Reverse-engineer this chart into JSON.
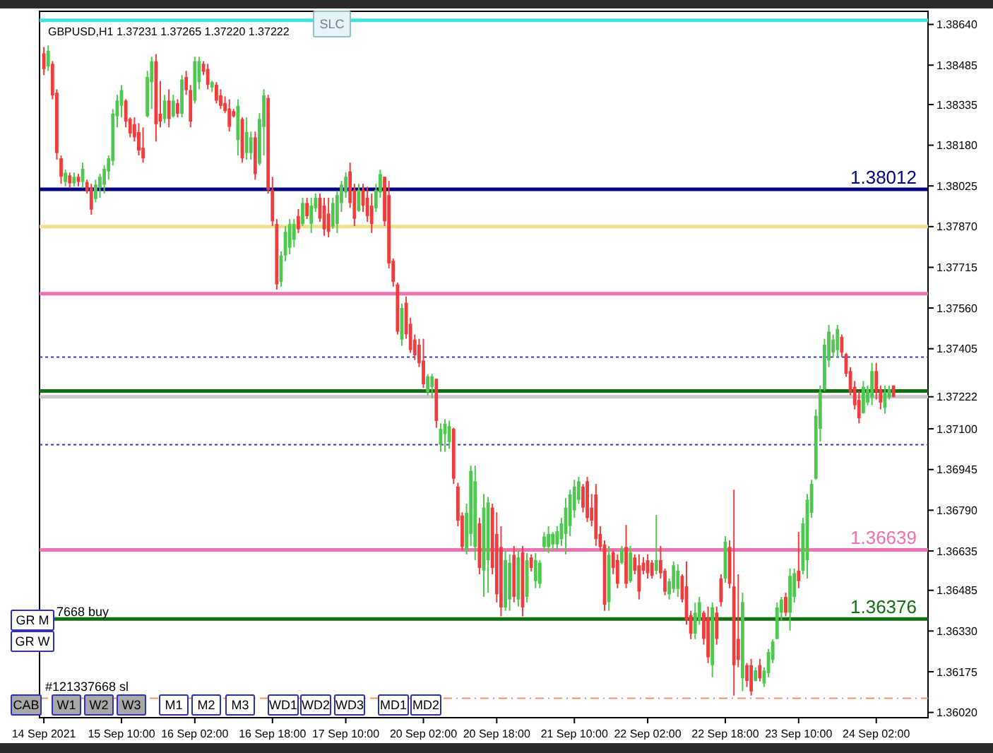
{
  "chart_data": {
    "type": "candlestick",
    "title": "GBPUSD,H1  1.37231 1.37265 1.37220 1.37222",
    "categories": [
      "14 Sep 2021",
      null,
      null,
      null,
      null,
      null,
      null,
      null,
      null,
      null,
      null,
      null,
      null,
      null,
      null,
      null,
      null,
      null,
      "15 Sep 10:00",
      null,
      null,
      null,
      null,
      null,
      null,
      null,
      null,
      null,
      null,
      null,
      null,
      null,
      null,
      null,
      null,
      "16 Sep 02:00",
      null,
      null,
      null,
      null,
      null,
      null,
      null,
      null,
      null,
      null,
      null,
      null,
      null,
      null,
      null,
      null,
      null,
      "16 Sep 18:00",
      null,
      null,
      null,
      null,
      null,
      null,
      null,
      null,
      null,
      null,
      null,
      null,
      null,
      null,
      null,
      null,
      "17 Sep 10:00",
      null,
      null,
      null,
      null,
      null,
      null,
      null,
      null,
      null,
      null,
      null,
      null,
      null,
      null,
      null,
      null,
      null,
      "20 Sep 02:00",
      null,
      null,
      null,
      null,
      null,
      null,
      null,
      null,
      null,
      null,
      null,
      null,
      null,
      null,
      null,
      null,
      "20 Sep 18:00",
      null,
      null,
      null,
      null,
      null,
      null,
      null,
      null,
      null,
      null,
      null,
      null,
      null,
      null,
      null,
      null,
      null,
      "21 Sep 10:00",
      null,
      null,
      null,
      null,
      null,
      null,
      null,
      null,
      null,
      null,
      null,
      null,
      null,
      null,
      null,
      null,
      "22 Sep 02:00",
      null,
      null,
      null,
      null,
      null,
      null,
      null,
      null,
      null,
      null,
      null,
      null,
      null,
      null,
      null,
      null,
      null,
      "22 Sep 18:00",
      null,
      null,
      null,
      null,
      null,
      null,
      null,
      null,
      null,
      null,
      null,
      null,
      null,
      null,
      null,
      null,
      "23 Sep 10:00",
      null,
      null,
      null,
      null,
      null,
      null,
      null,
      null,
      null,
      null,
      null,
      null,
      null,
      null,
      null,
      null,
      null,
      "24 Sep 02:00",
      null,
      null,
      null,
      null
    ],
    "ohlc": [
      [
        1.3853,
        1.38554,
        1.38447,
        1.3847
      ],
      [
        1.3848,
        1.3856,
        1.38463,
        1.3854
      ],
      [
        1.3849,
        1.385,
        1.38355,
        1.3837
      ],
      [
        1.3838,
        1.38393,
        1.38125,
        1.3815
      ],
      [
        1.3813,
        1.38141,
        1.38033,
        1.3806
      ],
      [
        1.3804,
        1.38087,
        1.38023,
        1.38075
      ],
      [
        1.38065,
        1.38076,
        1.38017,
        1.38035
      ],
      [
        1.38035,
        1.38076,
        1.38023,
        1.3806
      ],
      [
        1.3806,
        1.38071,
        1.38023,
        1.3804
      ],
      [
        1.3804,
        1.38114,
        1.38017,
        1.3809
      ],
      [
        1.3804,
        1.38049,
        1.37996,
        1.38005
      ],
      [
        1.3802,
        1.38033,
        1.37915,
        1.37935
      ],
      [
        1.37975,
        1.38049,
        1.37963,
        1.3803
      ],
      [
        1.3802,
        1.38071,
        1.3798,
        1.3806
      ],
      [
        1.3803,
        1.38103,
        1.37996,
        1.3809
      ],
      [
        1.3808,
        1.38141,
        1.38049,
        1.3813
      ],
      [
        1.3812,
        1.38318,
        1.38103,
        1.383
      ],
      [
        1.3829,
        1.38372,
        1.38248,
        1.3835
      ],
      [
        1.3833,
        1.38409,
        1.38286,
        1.3839
      ],
      [
        1.3835,
        1.38355,
        1.38248,
        1.3827
      ],
      [
        1.3828,
        1.38286,
        1.3821,
        1.38225
      ],
      [
        1.3826,
        1.38286,
        1.38194,
        1.3821
      ],
      [
        1.3823,
        1.38264,
        1.38141,
        1.3816
      ],
      [
        1.3817,
        1.38248,
        1.38114,
        1.3813
      ],
      [
        1.3829,
        1.38463,
        1.38286,
        1.3844
      ],
      [
        1.3842,
        1.38517,
        1.38318,
        1.385
      ],
      [
        1.385,
        1.38527,
        1.38194,
        1.3826
      ],
      [
        1.383,
        1.38425,
        1.38248,
        1.3827
      ],
      [
        1.3828,
        1.38372,
        1.38264,
        1.3835
      ],
      [
        1.3835,
        1.38393,
        1.38248,
        1.3828
      ],
      [
        1.3829,
        1.38372,
        1.38286,
        1.3835
      ],
      [
        1.3834,
        1.38355,
        1.38286,
        1.383
      ],
      [
        1.383,
        1.38447,
        1.38286,
        1.3843
      ],
      [
        1.3844,
        1.38463,
        1.38372,
        1.3839
      ],
      [
        1.3839,
        1.38409,
        1.38248,
        1.3827
      ],
      [
        1.3835,
        1.38517,
        1.38339,
        1.385
      ],
      [
        1.3842,
        1.38517,
        1.38393,
        1.385
      ],
      [
        1.3849,
        1.385,
        1.38447,
        1.3846
      ],
      [
        1.3847,
        1.3849,
        1.38393,
        1.3841
      ],
      [
        1.384,
        1.38425,
        1.38382,
        1.3842
      ],
      [
        1.3841,
        1.3842,
        1.38339,
        1.3835
      ],
      [
        1.3837,
        1.38393,
        1.38318,
        1.3833
      ],
      [
        1.3834,
        1.38366,
        1.38302,
        1.3831
      ],
      [
        1.3832,
        1.38355,
        1.38232,
        1.3825
      ],
      [
        1.3831,
        1.38318,
        1.38286,
        1.3829
      ],
      [
        1.382,
        1.38355,
        1.38141,
        1.3833
      ],
      [
        1.3828,
        1.38286,
        1.38114,
        1.3813
      ],
      [
        1.3815,
        1.38286,
        1.38125,
        1.3823
      ],
      [
        1.3815,
        1.38232,
        1.38125,
        1.3821
      ],
      [
        1.3821,
        1.38232,
        1.38049,
        1.3807
      ],
      [
        1.3811,
        1.38302,
        1.38103,
        1.3828
      ],
      [
        1.3825,
        1.38393,
        1.38141,
        1.3837
      ],
      [
        1.3836,
        1.38372,
        1.37996,
        1.3801
      ],
      [
        1.3801,
        1.3806,
        1.37872,
        1.3789
      ],
      [
        1.3788,
        1.37899,
        1.3763,
        1.3765
      ],
      [
        1.3766,
        1.37776,
        1.37641,
        1.3776
      ],
      [
        1.3776,
        1.37872,
        1.37738,
        1.3785
      ],
      [
        1.3779,
        1.37899,
        1.37765,
        1.3788
      ],
      [
        1.3782,
        1.37899,
        1.37792,
        1.3788
      ],
      [
        1.3791,
        1.37937,
        1.37846,
        1.3786
      ],
      [
        1.3788,
        1.3798,
        1.37872,
        1.3796
      ],
      [
        1.3796,
        1.3798,
        1.37899,
        1.3791
      ],
      [
        1.3788,
        1.3798,
        1.37846,
        1.3795
      ],
      [
        1.3794,
        1.37996,
        1.37926,
        1.3798
      ],
      [
        1.3798,
        1.37996,
        1.37888,
        1.379
      ],
      [
        1.3795,
        1.3798,
        1.37835,
        1.3786
      ],
      [
        1.3792,
        1.3798,
        1.37829,
        1.3785
      ],
      [
        1.3787,
        1.3798,
        1.37862,
        1.3796
      ],
      [
        1.3788,
        1.38006,
        1.37846,
        1.3799
      ],
      [
        1.3796,
        1.38044,
        1.37926,
        1.3803
      ],
      [
        1.38,
        1.38076,
        1.3798,
        1.3806
      ],
      [
        1.3808,
        1.38114,
        1.37942,
        1.3796
      ],
      [
        1.3801,
        1.38033,
        1.37872,
        1.379
      ],
      [
        1.3793,
        1.38033,
        1.37926,
        1.3801
      ],
      [
        1.3801,
        1.38033,
        1.37926,
        1.3795
      ],
      [
        1.3798,
        1.38022,
        1.37888,
        1.3791
      ],
      [
        1.3795,
        1.37996,
        1.37846,
        1.3788
      ],
      [
        1.3794,
        1.38033,
        1.37926,
        1.3801
      ],
      [
        1.38,
        1.38087,
        1.3798,
        1.3807
      ],
      [
        1.3806,
        1.3806,
        1.37872,
        1.3789
      ],
      [
        1.3799,
        1.38044,
        1.37711,
        1.3773
      ],
      [
        1.3774,
        1.37749,
        1.37641,
        1.3766
      ],
      [
        1.3765,
        1.37657,
        1.37459,
        1.3747
      ],
      [
        1.3744,
        1.37577,
        1.37416,
        1.3756
      ],
      [
        1.3758,
        1.37604,
        1.37443,
        1.3746
      ],
      [
        1.375,
        1.37523,
        1.37389,
        1.374
      ],
      [
        1.3744,
        1.37459,
        1.37362,
        1.3738
      ],
      [
        1.3742,
        1.37443,
        1.37335,
        1.3735
      ],
      [
        1.3736,
        1.37443,
        1.37255,
        1.3727
      ],
      [
        1.3724,
        1.37309,
        1.37228,
        1.373
      ],
      [
        1.3726,
        1.37309,
        1.37217,
        1.373
      ],
      [
        1.3729,
        1.37292,
        1.37104,
        1.3713
      ],
      [
        1.3704,
        1.37121,
        1.37013,
        1.371
      ],
      [
        1.3708,
        1.37137,
        1.37013,
        1.3712
      ],
      [
        1.3705,
        1.37131,
        1.37024,
        1.3711
      ],
      [
        1.371,
        1.37104,
        1.3689,
        1.3691
      ],
      [
        1.3688,
        1.36895,
        1.36729,
        1.3675
      ],
      [
        1.3677,
        1.36782,
        1.36637,
        1.3665
      ],
      [
        1.3664,
        1.36815,
        1.36622,
        1.3678
      ],
      [
        1.367,
        1.3696,
        1.36654,
        1.3694
      ],
      [
        1.3665,
        1.3696,
        1.366,
        1.369
      ],
      [
        1.3674,
        1.36761,
        1.36546,
        1.3657
      ],
      [
        1.3656,
        1.36852,
        1.3646,
        1.368
      ],
      [
        1.366,
        1.36841,
        1.36476,
        1.3682
      ],
      [
        1.368,
        1.36815,
        1.36546,
        1.3657
      ],
      [
        1.367,
        1.36782,
        1.36439,
        1.3647
      ],
      [
        1.3665,
        1.36729,
        1.36386,
        1.3642
      ],
      [
        1.3642,
        1.36637,
        1.36407,
        1.366
      ],
      [
        1.3645,
        1.36622,
        1.36407,
        1.3659
      ],
      [
        1.3662,
        1.36654,
        1.36439,
        1.3646
      ],
      [
        1.3645,
        1.36637,
        1.36423,
        1.3661
      ],
      [
        1.3663,
        1.36654,
        1.36386,
        1.3642
      ],
      [
        1.3646,
        1.36627,
        1.36439,
        1.366
      ],
      [
        1.3661,
        1.36622,
        1.36557,
        1.3657
      ],
      [
        1.3652,
        1.36627,
        1.36493,
        1.366
      ],
      [
        1.3651,
        1.366,
        1.36493,
        1.3659
      ],
      [
        1.3665,
        1.36707,
        1.36637,
        1.3669
      ],
      [
        1.3665,
        1.36729,
        1.36627,
        1.367
      ],
      [
        1.3666,
        1.36707,
        1.36637,
        1.367
      ],
      [
        1.3666,
        1.36729,
        1.36637,
        1.3671
      ],
      [
        1.3668,
        1.36761,
        1.36654,
        1.3674
      ],
      [
        1.367,
        1.36836,
        1.36622,
        1.368
      ],
      [
        1.3673,
        1.36868,
        1.36691,
        1.3685
      ],
      [
        1.3679,
        1.36906,
        1.36761,
        1.3688
      ],
      [
        1.3683,
        1.36917,
        1.36815,
        1.369
      ],
      [
        1.3688,
        1.3689,
        1.36782,
        1.368
      ],
      [
        1.369,
        1.36917,
        1.36745,
        1.3676
      ],
      [
        1.368,
        1.36852,
        1.36729,
        1.3675
      ],
      [
        1.3685,
        1.3689,
        1.36654,
        1.3668
      ],
      [
        1.367,
        1.36729,
        1.36637,
        1.3665
      ],
      [
        1.3666,
        1.36675,
        1.36407,
        1.3643
      ],
      [
        1.3644,
        1.36654,
        1.36407,
        1.3662
      ],
      [
        1.3663,
        1.36637,
        1.36546,
        1.3657
      ],
      [
        1.366,
        1.36622,
        1.36493,
        1.3651
      ],
      [
        1.3659,
        1.36654,
        1.36584,
        1.3664
      ],
      [
        1.3665,
        1.36734,
        1.36493,
        1.3651
      ],
      [
        1.3652,
        1.36654,
        1.36514,
        1.3663
      ],
      [
        1.3661,
        1.36622,
        1.36546,
        1.3656
      ],
      [
        1.3658,
        1.36622,
        1.3645,
        1.3648
      ],
      [
        1.3659,
        1.36611,
        1.36546,
        1.3656
      ],
      [
        1.366,
        1.36622,
        1.3653,
        1.3655
      ],
      [
        1.3659,
        1.366,
        1.3653,
        1.3654
      ],
      [
        1.3656,
        1.36772,
        1.36546,
        1.366
      ],
      [
        1.366,
        1.36654,
        1.3653,
        1.3655
      ],
      [
        1.3656,
        1.36568,
        1.36466,
        1.3648
      ],
      [
        1.3647,
        1.3653,
        1.3645,
        1.3652
      ],
      [
        1.3649,
        1.36595,
        1.36476,
        1.3658
      ],
      [
        1.3649,
        1.36584,
        1.3646,
        1.3656
      ],
      [
        1.3654,
        1.36546,
        1.36439,
        1.3645
      ],
      [
        1.365,
        1.36595,
        1.36354,
        1.3637
      ],
      [
        1.3639,
        1.36407,
        1.36299,
        1.3632
      ],
      [
        1.3632,
        1.36439,
        1.36299,
        1.364
      ],
      [
        1.3637,
        1.3646,
        1.36354,
        1.3644
      ],
      [
        1.364,
        1.36407,
        1.36278,
        1.363
      ],
      [
        1.3638,
        1.36423,
        1.36208,
        1.3623
      ],
      [
        1.362,
        1.36439,
        1.36154,
        1.3642
      ],
      [
        1.364,
        1.36423,
        1.36278,
        1.363
      ],
      [
        1.3653,
        1.36546,
        1.36423,
        1.3644
      ],
      [
        1.3653,
        1.36691,
        1.36514,
        1.3667
      ],
      [
        1.3665,
        1.36675,
        1.36493,
        1.3651
      ],
      [
        1.365,
        1.36868,
        1.36084,
        1.362
      ],
      [
        1.363,
        1.36546,
        1.36192,
        1.3622
      ],
      [
        1.3615,
        1.36476,
        1.36101,
        1.3644
      ],
      [
        1.362,
        1.36208,
        1.36117,
        1.3614
      ],
      [
        1.362,
        1.36224,
        1.36084,
        1.361
      ],
      [
        1.3614,
        1.36192,
        1.36138,
        1.3618
      ],
      [
        1.362,
        1.36224,
        1.36138,
        1.3615
      ],
      [
        1.3613,
        1.36192,
        1.36117,
        1.3618
      ],
      [
        1.3617,
        1.36262,
        1.36154,
        1.3625
      ],
      [
        1.3622,
        1.36299,
        1.36208,
        1.3629
      ],
      [
        1.363,
        1.36439,
        1.36299,
        1.3642
      ],
      [
        1.364,
        1.3646,
        1.36369,
        1.3645
      ],
      [
        1.3646,
        1.36476,
        1.36386,
        1.364
      ],
      [
        1.364,
        1.36568,
        1.36332,
        1.3654
      ],
      [
        1.3646,
        1.36568,
        1.36439,
        1.3655
      ],
      [
        1.3656,
        1.36707,
        1.36493,
        1.3652
      ],
      [
        1.3656,
        1.36761,
        1.36546,
        1.3674
      ],
      [
        1.366,
        1.36852,
        1.3653,
        1.3683
      ],
      [
        1.3678,
        1.36906,
        1.36761,
        1.3689
      ],
      [
        1.3691,
        1.37174,
        1.36906,
        1.3715
      ],
      [
        1.371,
        1.37265,
        1.37051,
        1.3724
      ],
      [
        1.3725,
        1.37443,
        1.37244,
        1.3742
      ],
      [
        1.3736,
        1.37496,
        1.37335,
        1.3747
      ],
      [
        1.3739,
        1.37459,
        1.37373,
        1.3744
      ],
      [
        1.374,
        1.37496,
        1.37373,
        1.3748
      ],
      [
        1.3745,
        1.37459,
        1.37373,
        1.3739
      ],
      [
        1.37385,
        1.37389,
        1.37298,
        1.3731
      ],
      [
        1.3732,
        1.37335,
        1.37228,
        1.3724
      ],
      [
        1.3726,
        1.37282,
        1.37174,
        1.3719
      ],
      [
        1.3721,
        1.37244,
        1.37121,
        1.3714
      ],
      [
        1.3716,
        1.37282,
        1.37158,
        1.3726
      ],
      [
        1.372,
        1.37265,
        1.3719,
        1.3725
      ],
      [
        1.3722,
        1.37351,
        1.3719,
        1.3732
      ],
      [
        1.3732,
        1.37351,
        1.37212,
        1.3724
      ],
      [
        1.3725,
        1.37265,
        1.37174,
        1.372
      ],
      [
        1.3718,
        1.37265,
        1.37158,
        1.3724
      ],
      [
        1.3722,
        1.37265,
        1.37212,
        1.3725
      ],
      [
        1.37265,
        1.37265,
        1.3722,
        1.37222
      ]
    ],
    "ylim": [
      1.36,
      1.3869
    ],
    "yticks": [
      {
        "value": 1.3864,
        "label": "1.38640"
      },
      1.38485,
      1.38335,
      {
        "value": 1.3818,
        "label": "1.38180"
      },
      1.38025,
      {
        "value": 1.3787,
        "label": "1.37870"
      },
      1.37715,
      {
        "value": 1.3756,
        "label": "1.37560"
      },
      1.37405,
      {
        "value": 1.37222,
        "label": "1.37222"
      },
      {
        "value": 1.371,
        "label": "1.37100"
      },
      1.36945,
      {
        "value": 1.3679,
        "label": "1.36790"
      },
      1.36635,
      1.36485,
      {
        "value": 1.3633,
        "label": "1.36330"
      },
      1.36175,
      {
        "value": 1.3602,
        "label": "1.36020"
      }
    ],
    "ref_lines": [
      {
        "axis": "y",
        "value": 1.38656,
        "color": "#40e0e0"
      },
      {
        "axis": "y",
        "value": 1.38012,
        "label": "1.38012",
        "color": "#000080"
      },
      {
        "axis": "y",
        "value": 1.3787,
        "color": "#f0e08c"
      },
      {
        "axis": "y",
        "value": 1.37615,
        "color": "#f070b0"
      },
      {
        "axis": "y",
        "value": 1.37373,
        "color": "#3040c0",
        "line_style": "dotted"
      },
      {
        "axis": "y",
        "value": 1.37244,
        "color": "#107010"
      },
      {
        "axis": "y",
        "value": 1.37222,
        "color": "#c8c8c8"
      },
      {
        "axis": "y",
        "value": 1.3704,
        "color": "#3040c0",
        "line_style": "dotted"
      },
      {
        "axis": "y",
        "value": 1.36639,
        "label": "1.36639",
        "color": "#f070b0"
      },
      {
        "axis": "y",
        "value": 1.36376,
        "label": "1.36376",
        "color": "#107010"
      },
      {
        "axis": "y",
        "value": 1.36074,
        "color": "#f09070",
        "line_style": "dashed"
      }
    ],
    "annotations": [
      "SLC",
      "GR M",
      "GR W",
      "CAB",
      "W1",
      "W2",
      "W3",
      "M1",
      "M2",
      "M3",
      "WD1",
      "WD2",
      "WD3",
      "MD1",
      "MD2",
      "7668 buy",
      "#121337668 sl"
    ]
  }
}
